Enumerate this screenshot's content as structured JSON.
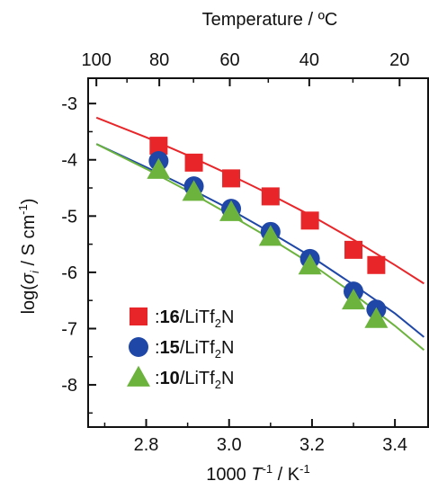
{
  "chart_data": {
    "type": "scatter",
    "xlabel": "1000 T⁻¹ / K⁻¹",
    "ylabel": "log(σi / S cm⁻¹)",
    "top_axis_label": "Temperature / ºC",
    "xlim": [
      2.66,
      3.48
    ],
    "ylim": [
      -8.75,
      -2.55
    ],
    "x_ticks": [
      2.8,
      3.0,
      3.2,
      3.4
    ],
    "x_tick_labels": [
      "2.8",
      "3.0",
      "3.2",
      "3.4"
    ],
    "y_ticks": [
      -3,
      -4,
      -5,
      -6,
      -7,
      -8
    ],
    "y_tick_labels": [
      "-3",
      "-4",
      "-5",
      "-6",
      "-7",
      "-8"
    ],
    "top_ticks_celsius": [
      100,
      80,
      60,
      40,
      20
    ],
    "top_tick_labels": [
      "100",
      "80",
      "60",
      "40",
      "20"
    ],
    "grid": false,
    "legend_position": "bottom-left",
    "series": [
      {
        "name_prefix": ":",
        "name_bold": "16",
        "name_suffix": "/LiTf",
        "name_sub": "2",
        "name_end": "N",
        "marker": "square",
        "color": "#e8262a",
        "x": [
          2.83,
          2.915,
          3.005,
          3.1,
          3.195,
          3.3,
          3.355
        ],
        "y": [
          -3.75,
          -4.05,
          -4.33,
          -4.65,
          -5.08,
          -5.6,
          -5.87
        ],
        "fit": [
          [
            2.68,
            -3.25
          ],
          [
            2.8,
            -3.6
          ],
          [
            2.9,
            -3.92
          ],
          [
            3.0,
            -4.26
          ],
          [
            3.1,
            -4.62
          ],
          [
            3.2,
            -5.0
          ],
          [
            3.3,
            -5.42
          ],
          [
            3.4,
            -5.87
          ],
          [
            3.47,
            -6.2
          ]
        ]
      },
      {
        "name_prefix": ":",
        "name_bold": "15",
        "name_suffix": "/LiTf",
        "name_sub": "2",
        "name_end": "N",
        "marker": "circle",
        "color": "#1f47a7",
        "x": [
          2.83,
          2.915,
          3.005,
          3.1,
          3.195,
          3.3,
          3.355
        ],
        "y": [
          -4.02,
          -4.47,
          -4.87,
          -5.28,
          -5.76,
          -6.34,
          -6.66
        ],
        "fit": [
          [
            2.68,
            -3.72
          ],
          [
            2.8,
            -4.13
          ],
          [
            2.9,
            -4.49
          ],
          [
            3.0,
            -4.87
          ],
          [
            3.1,
            -5.29
          ],
          [
            3.2,
            -5.73
          ],
          [
            3.3,
            -6.22
          ],
          [
            3.4,
            -6.73
          ],
          [
            3.47,
            -7.15
          ]
        ]
      },
      {
        "name_prefix": ":",
        "name_bold": "10",
        "name_suffix": "/LiTf",
        "name_sub": "2",
        "name_end": "N",
        "marker": "triangle",
        "color": "#6cb33e",
        "x": [
          2.83,
          2.915,
          3.005,
          3.1,
          3.195,
          3.3,
          3.355
        ],
        "y": [
          -4.18,
          -4.57,
          -4.93,
          -5.37,
          -5.88,
          -6.5,
          -6.83
        ],
        "fit": [
          [
            2.68,
            -3.72
          ],
          [
            2.8,
            -4.16
          ],
          [
            2.9,
            -4.55
          ],
          [
            3.0,
            -4.97
          ],
          [
            3.1,
            -5.4
          ],
          [
            3.2,
            -5.86
          ],
          [
            3.3,
            -6.38
          ],
          [
            3.4,
            -6.95
          ],
          [
            3.47,
            -7.38
          ]
        ]
      }
    ]
  }
}
